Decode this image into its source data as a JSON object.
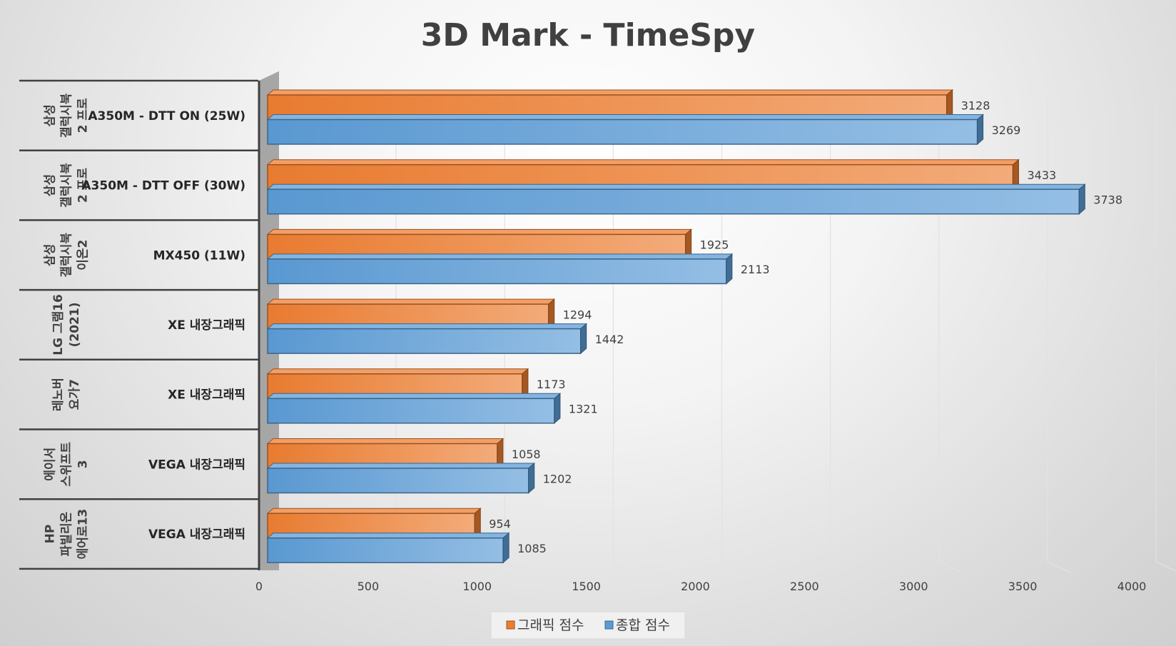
{
  "chart_data": {
    "type": "bar",
    "orientation": "horizontal",
    "title": "3D Mark - TimeSpy",
    "categories": [
      {
        "group": [
          "삼성",
          "갤럭시북",
          "2 프로"
        ],
        "label": "A350M - DTT ON (25W)"
      },
      {
        "group": [
          "삼성",
          "갤럭시북",
          "2 프로"
        ],
        "label": "A350M - DTT OFF (30W)"
      },
      {
        "group": [
          "삼성",
          "갤럭시북",
          "이온2"
        ],
        "label": "MX450 (11W)"
      },
      {
        "group": [
          "LG 그램16",
          "(2021)"
        ],
        "label": "XE 내장그래픽"
      },
      {
        "group": [
          "레노버",
          "요가7"
        ],
        "label": "XE 내장그래픽"
      },
      {
        "group": [
          "에이서",
          "스위프트",
          "3"
        ],
        "label": "VEGA 내장그래픽"
      },
      {
        "group": [
          "HP",
          "파빌리온",
          "에어로13"
        ],
        "label": "VEGA 내장그래픽"
      }
    ],
    "series": [
      {
        "name": "그래픽 점수",
        "color": "#ED7D31",
        "values": [
          3128,
          3433,
          1925,
          1294,
          1173,
          1058,
          954
        ]
      },
      {
        "name": "종합 점수",
        "color": "#5B9BD5",
        "values": [
          3269,
          3738,
          2113,
          1442,
          1321,
          1202,
          1085
        ]
      }
    ],
    "xlim": [
      0,
      4000
    ],
    "xticks": [
      "0",
      "500",
      "1000",
      "1500",
      "2000",
      "2500",
      "3000",
      "3500",
      "4000"
    ],
    "grid": true,
    "legend_position": "bottom",
    "style": "3d-bar"
  }
}
